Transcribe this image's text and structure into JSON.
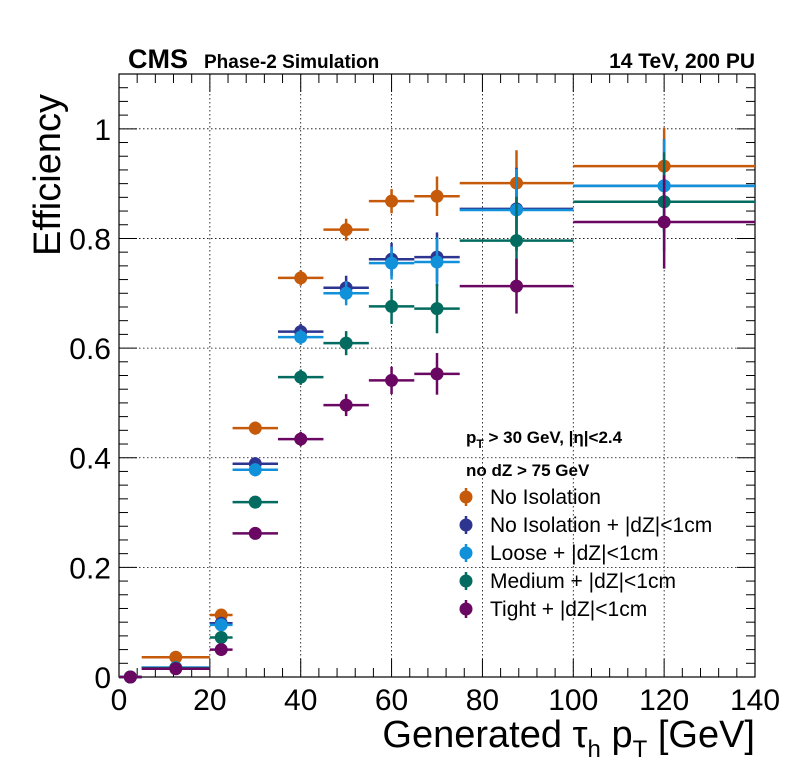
{
  "header": {
    "experiment": "CMS",
    "status": "Phase-2 Simulation",
    "energy": "14 TeV, 200 PU"
  },
  "chart_data": {
    "type": "scatter",
    "xlabel_main": "Generated τ",
    "xlabel_sub1": "h",
    "xlabel_mid": " p",
    "xlabel_sub2": "T",
    "xlabel_end": " [GeV]",
    "ylabel": "Efficiency",
    "xlim": [
      0,
      140
    ],
    "ylim": [
      0,
      1.1
    ],
    "xticks": [
      0,
      20,
      40,
      60,
      80,
      100,
      120,
      140
    ],
    "yticks": [
      0,
      0.2,
      0.4,
      0.6,
      0.8,
      1
    ],
    "grid": true,
    "legend_position": "bottom-right",
    "cuts": {
      "line1_p": "p",
      "line1_sub": "T",
      "line1_rest": " > 30 GeV, |η|<2.4",
      "line2": "no dZ > 75 GeV"
    },
    "bins": [
      {
        "x": 2.5,
        "lo": 0,
        "hi": 5
      },
      {
        "x": 12.5,
        "lo": 5,
        "hi": 20
      },
      {
        "x": 22.5,
        "lo": 20,
        "hi": 25
      },
      {
        "x": 30,
        "lo": 25,
        "hi": 35
      },
      {
        "x": 40,
        "lo": 35,
        "hi": 45
      },
      {
        "x": 50,
        "lo": 45,
        "hi": 55
      },
      {
        "x": 60,
        "lo": 55,
        "hi": 65
      },
      {
        "x": 70,
        "lo": 65,
        "hi": 75
      },
      {
        "x": 87.5,
        "lo": 75,
        "hi": 100
      },
      {
        "x": 120,
        "lo": 100,
        "hi": 140
      }
    ],
    "series": [
      {
        "name": "No Isolation",
        "color": "#c65a0b",
        "values": [
          0.0,
          0.036,
          0.113,
          0.454,
          0.728,
          0.816,
          0.868,
          0.877,
          0.901,
          0.932
        ],
        "errors": [
          0.003,
          0.004,
          0.01,
          0.012,
          0.014,
          0.02,
          0.022,
          0.036,
          0.06,
          0.07
        ]
      },
      {
        "name": "No Isolation + |dZ|<1cm",
        "color": "#2e3590",
        "values": [
          0.0,
          0.017,
          0.098,
          0.389,
          0.63,
          0.71,
          0.762,
          0.766,
          0.854,
          0.896
        ],
        "errors": [
          0.003,
          0.004,
          0.01,
          0.012,
          0.014,
          0.022,
          0.03,
          0.045,
          0.075,
          0.085
        ]
      },
      {
        "name": "Loose + |dZ|<1cm",
        "color": "#1191d9",
        "values": [
          0.0,
          0.017,
          0.095,
          0.378,
          0.62,
          0.7,
          0.755,
          0.757,
          0.852,
          0.896
        ],
        "errors": [
          0.003,
          0.004,
          0.01,
          0.012,
          0.014,
          0.022,
          0.03,
          0.045,
          0.075,
          0.085
        ]
      },
      {
        "name": "Medium + |dZ|<1cm",
        "color": "#036b5f",
        "values": [
          0.0,
          0.016,
          0.072,
          0.319,
          0.547,
          0.609,
          0.676,
          0.672,
          0.796,
          0.867
        ],
        "errors": [
          0.003,
          0.004,
          0.009,
          0.011,
          0.014,
          0.022,
          0.032,
          0.045,
          0.08,
          0.09
        ]
      },
      {
        "name": "Tight + |dZ|<1cm",
        "color": "#690762",
        "values": [
          0.0,
          0.015,
          0.05,
          0.262,
          0.434,
          0.496,
          0.541,
          0.553,
          0.713,
          0.83
        ],
        "errors": [
          0.003,
          0.004,
          0.008,
          0.011,
          0.013,
          0.02,
          0.025,
          0.038,
          0.05,
          0.085
        ]
      }
    ]
  }
}
